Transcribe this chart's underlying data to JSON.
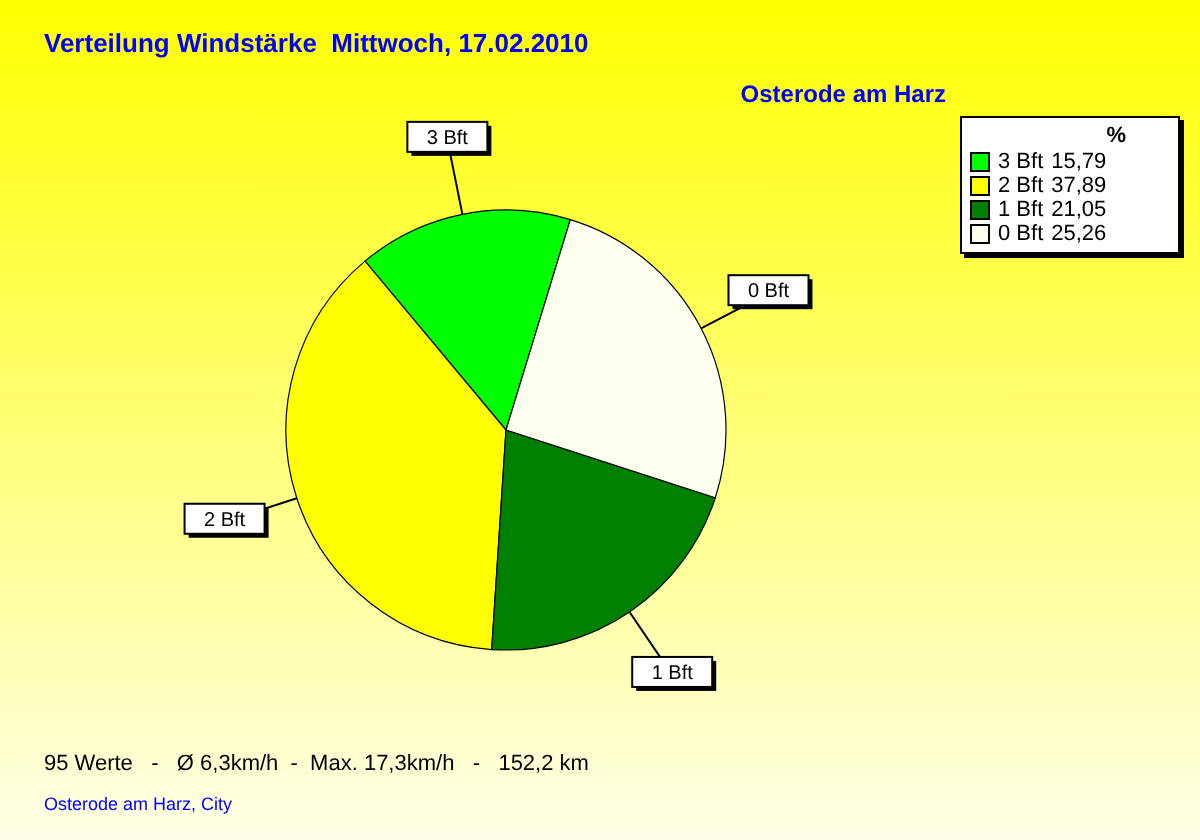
{
  "chart_data": {
    "type": "pie",
    "title": "Verteilung Windstärke  Mittwoch, 17.02.2010",
    "subtitle": "Osterode am Harz",
    "categories": [
      "3 Bft",
      "2 Bft",
      "1 Bft",
      "0 Bft"
    ],
    "values": [
      15.79,
      37.89,
      21.05,
      25.26
    ],
    "value_labels": [
      "15,79",
      "37,89",
      "21,05",
      "25,26"
    ],
    "colors": [
      "#00ff00",
      "#ffff00",
      "#008000",
      "#fffff0"
    ],
    "legend": "top right",
    "legend_title": "%",
    "annotations": [
      "95 Werte   -   Ø 6,3km/h  -  Max. 17,3km/h   -   152,2 km",
      "Osterode am Harz, City"
    ]
  }
}
